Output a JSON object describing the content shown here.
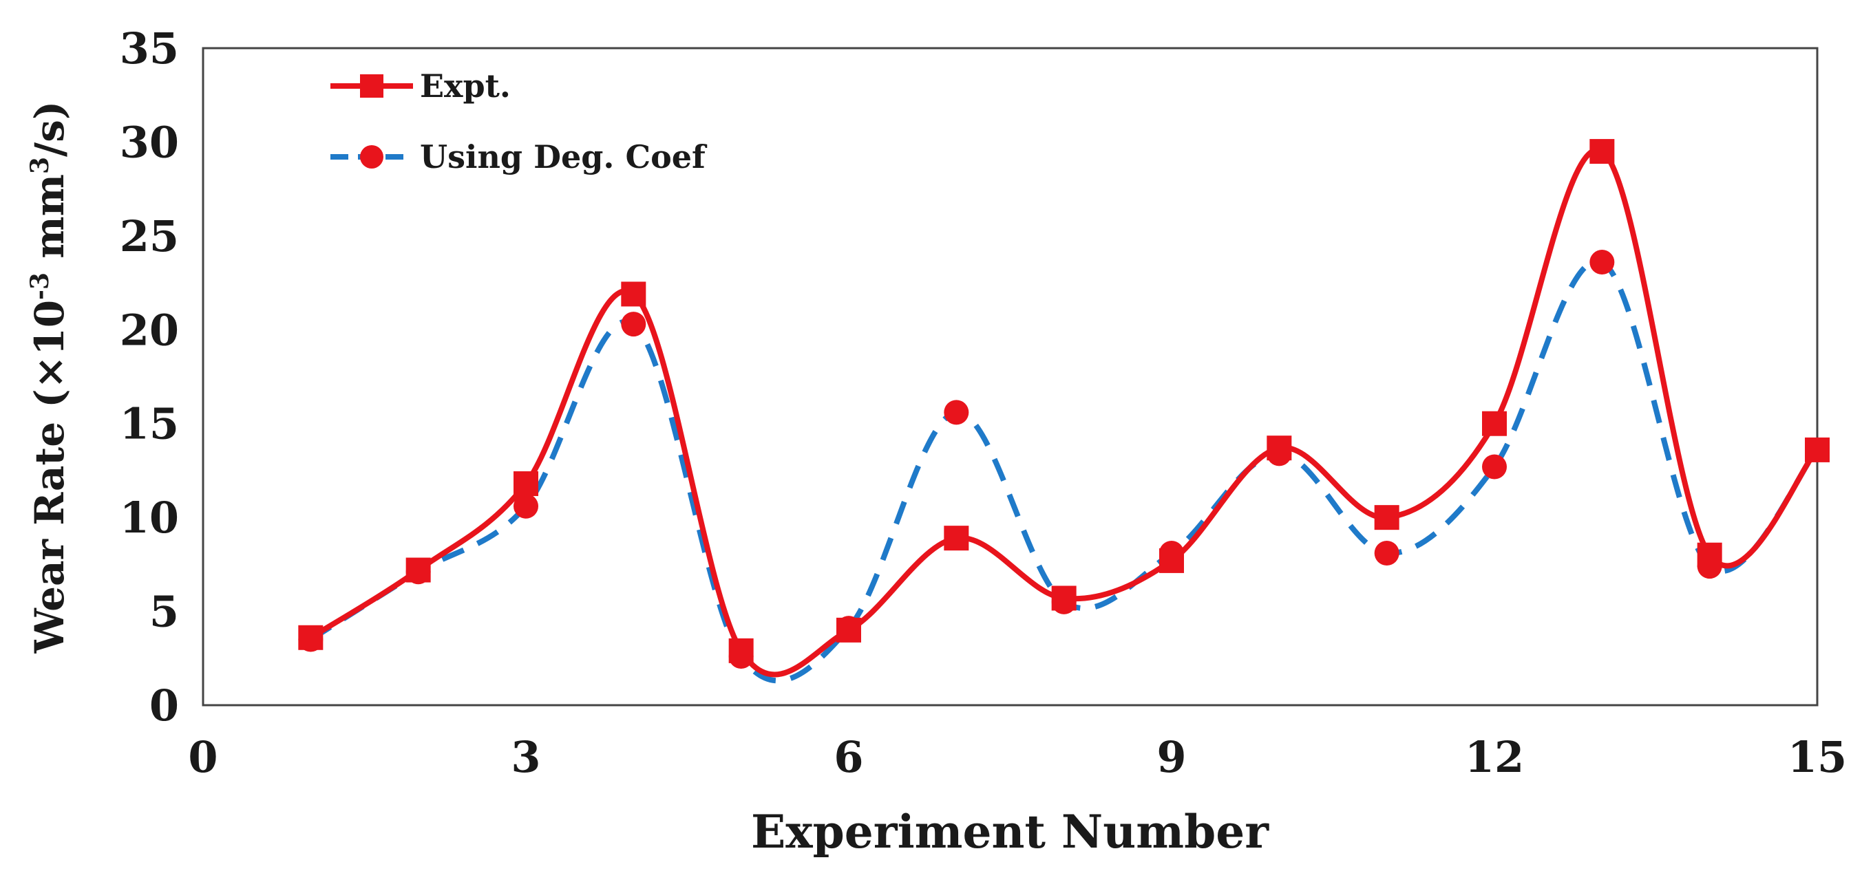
{
  "chart_data": {
    "type": "line",
    "title": "",
    "xlabel": "Experiment Number",
    "ylabel": {
      "main": "Wear Rate (×10",
      "exp1": "-3",
      "mid": " mm",
      "exp2": "3",
      "end": "/s)"
    },
    "xlim": [
      0,
      15
    ],
    "ylim": [
      0,
      35
    ],
    "xticks": [
      0,
      3,
      6,
      9,
      12,
      15
    ],
    "yticks": [
      0,
      5,
      10,
      15,
      20,
      25,
      30,
      35
    ],
    "grid": false,
    "legend_position": "top-left",
    "x": [
      1,
      2,
      3,
      4,
      5,
      6,
      7,
      8,
      9,
      10,
      11,
      12,
      13,
      14,
      15
    ],
    "series": [
      {
        "name": "Expt.",
        "color": "#e8141c",
        "line_style": "solid",
        "marker": "square",
        "values": [
          3.6,
          7.2,
          11.8,
          21.9,
          2.9,
          4.0,
          8.9,
          5.7,
          7.7,
          13.7,
          10.0,
          15.0,
          29.5,
          8.0,
          13.6
        ]
      },
      {
        "name": "Using Deg. Coef",
        "color": "#1f7ac9",
        "line_style": "dashed",
        "marker": "circle",
        "values": [
          3.5,
          7.1,
          10.6,
          20.3,
          2.6,
          4.1,
          15.6,
          5.5,
          8.1,
          13.4,
          8.1,
          12.7,
          23.6,
          7.4,
          13.6
        ]
      }
    ]
  }
}
